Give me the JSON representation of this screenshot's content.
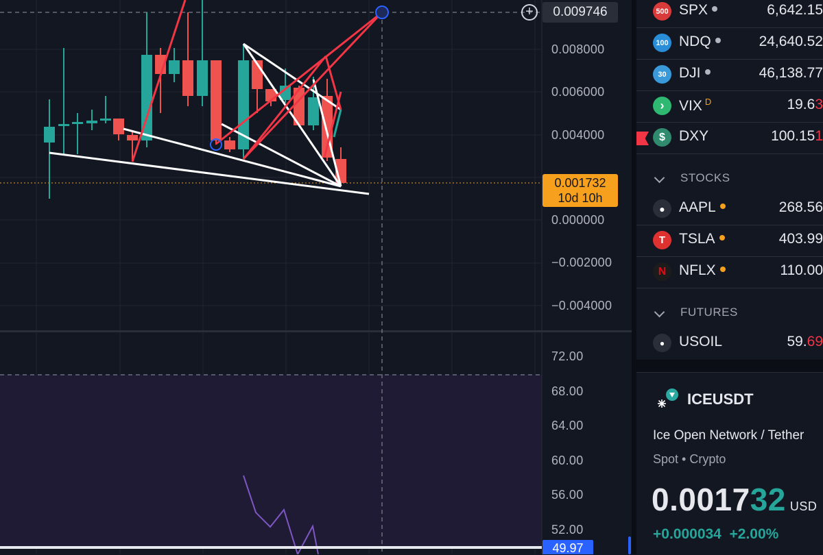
{
  "chart": {
    "crosshair_value": "0.009746",
    "price_axis": [
      "0.008000",
      "0.006000",
      "0.004000",
      "0.000000",
      "−0.002000",
      "−0.004000"
    ],
    "current_price": "0.001732",
    "countdown": "10d 10h",
    "rsi_axis": [
      "72.00",
      "68.00",
      "64.00",
      "60.00",
      "56.00",
      "52.00"
    ],
    "rsi_value": "49.97",
    "colors": {
      "up": "#26a69a",
      "down": "#ef5350",
      "drawing": "#ffffff",
      "trend": "#f23645",
      "rsi": "#7e57c2",
      "price_line": "#f7a01e"
    }
  },
  "watchlist": {
    "indices": [
      {
        "badge": "500",
        "symbol": "SPX",
        "price": "6,642.15",
        "badge_color": "#d93a3a",
        "dot_color": "#b2b5be"
      },
      {
        "badge": "100",
        "symbol": "NDQ",
        "price": "24,640.52",
        "badge_color": "#2a8dd8",
        "dot_color": "#b2b5be"
      },
      {
        "badge": "30",
        "symbol": "DJI",
        "price": "46,138.77",
        "badge_color": "#3a9ad9",
        "dot_color": "#b2b5be"
      },
      {
        "badge": "›",
        "symbol": "VIX",
        "price_main": "19.6",
        "price_tail": "3",
        "badge_color": "#2eb872",
        "superscript": "D"
      },
      {
        "badge": "$",
        "symbol": "DXY",
        "price_main": "100.15",
        "price_tail": "1",
        "badge_color": "#2f8a6e"
      }
    ],
    "stocks_header": "STOCKS",
    "stocks": [
      {
        "badge": "",
        "symbol": "AAPL",
        "price": "268.56",
        "badge_color": "#2a2e39",
        "dot_color": "#f7a01e"
      },
      {
        "badge": "T",
        "symbol": "TSLA",
        "price": "403.99",
        "badge_color": "#e03131",
        "dot_color": "#f7a01e"
      },
      {
        "badge": "N",
        "symbol": "NFLX",
        "price": "110.00",
        "badge_color": "#1c1c1c",
        "dot_color": "#f7a01e"
      }
    ],
    "futures_header": "FUTURES",
    "futures": [
      {
        "badge": "●",
        "symbol": "USOIL",
        "price_main": "59.",
        "price_tail": "69",
        "badge_color": "#2a2e39"
      }
    ]
  },
  "details": {
    "symbol": "ICEUSDT",
    "name": "Ice Open Network / Tether",
    "meta": "Spot • Crypto",
    "price_main": "0.0017",
    "price_tail": "32",
    "currency": "USD",
    "change": "+0.000034",
    "change_pct": "+2.00%"
  }
}
